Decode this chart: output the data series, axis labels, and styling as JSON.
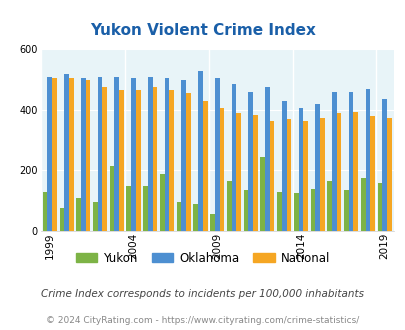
{
  "title": "Yukon Violent Crime Index",
  "years": [
    1999,
    2000,
    2001,
    2002,
    2003,
    2004,
    2005,
    2006,
    2007,
    2008,
    2009,
    2010,
    2011,
    2012,
    2013,
    2014,
    2015,
    2016,
    2017,
    2018,
    2019
  ],
  "yukon": [
    130,
    75,
    110,
    95,
    215,
    150,
    150,
    190,
    95,
    90,
    55,
    165,
    135,
    245,
    130,
    125,
    140,
    165,
    135,
    175,
    160
  ],
  "oklahoma": [
    510,
    520,
    505,
    510,
    510,
    505,
    510,
    505,
    500,
    530,
    505,
    485,
    460,
    475,
    430,
    405,
    420,
    460,
    460,
    470,
    435
  ],
  "national": [
    505,
    505,
    500,
    475,
    465,
    465,
    475,
    465,
    455,
    430,
    405,
    390,
    385,
    365,
    370,
    365,
    375,
    390,
    395,
    380,
    375
  ],
  "yukon_color": "#7db346",
  "oklahoma_color": "#4d8fd1",
  "national_color": "#f5a623",
  "bg_color": "#e8f4f8",
  "ylim": [
    0,
    600
  ],
  "yticks": [
    0,
    200,
    400,
    600
  ],
  "xlabel_ticks": [
    1999,
    2004,
    2009,
    2014,
    2019
  ],
  "footnote1": "Crime Index corresponds to incidents per 100,000 inhabitants",
  "footnote2": "© 2024 CityRating.com - https://www.cityrating.com/crime-statistics/",
  "title_color": "#1a5fa8",
  "footnote1_color": "#444444",
  "footnote2_color": "#888888"
}
